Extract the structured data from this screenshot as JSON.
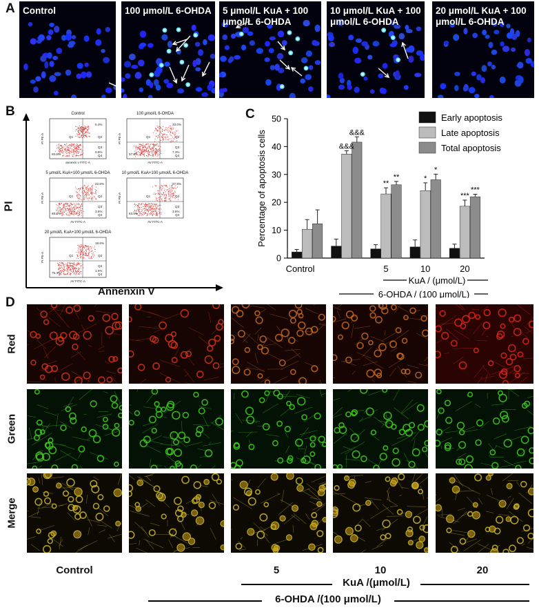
{
  "panels": {
    "a": "A",
    "b": "B",
    "c": "C",
    "d": "D"
  },
  "panel_a": {
    "images": [
      {
        "label": "Control"
      },
      {
        "label": "100 μmol/L  6-OHDA"
      },
      {
        "label": "5 μmol/L KuA + 100 μmol/L 6-OHDA"
      },
      {
        "label": "10 μmol/L KuA + 100 μmol/L 6-OHDA"
      },
      {
        "label": "20 μmol/L KuA + 100 μmol/L 6-OHDA"
      }
    ]
  },
  "panel_b": {
    "y_axis": "PI",
    "x_axis": "Annenxin V",
    "plots": [
      {
        "title": "Control",
        "ylabel": "PI PE-A",
        "xlabel": "annexin v FITC-A",
        "q1": "Q1",
        "q2": "Q2",
        "q3": "Q3",
        "q4": "Q4",
        "v_q2": "5.4%",
        "v_q3": "93.0%",
        "v_q4": "0.5%"
      },
      {
        "title": "100 μmol/L  6-OHDA",
        "ylabel": "PI PE-A",
        "xlabel": "AV FITC-A",
        "q1": "Q1",
        "q2": "Q2",
        "q3": "Q3",
        "q4": "Q4",
        "v_q2": "33.0%",
        "v_q3": "57.8%",
        "v_q4": "7.3%"
      },
      {
        "title": "5 μmol/L KuA+100 μmol/L 6-OHDA",
        "ylabel": "PI PE-A",
        "xlabel": "AV FITC-A",
        "q1": "Q1",
        "q2": "Q2",
        "q3": "Q3",
        "q4": "Q4",
        "v_q2": "22.8%",
        "v_q3": "69.8%",
        "v_q4": "3.5%"
      },
      {
        "title": "10 μmol/L KuA+100 μmol/L 6-OHDA",
        "ylabel": "PI PE-A",
        "xlabel": "AV FITC-A",
        "q1": "Q1",
        "q2": "Q2",
        "q3": "Q3",
        "q4": "Q4",
        "v_q2": "27.8%",
        "v_q3": "63.5%",
        "v_q4": "3.5%"
      },
      {
        "title": "20 μmol/L KuA+100 μmol/L 6-OHDA",
        "ylabel": "PI PE-A",
        "xlabel": "AV FITC-A",
        "q1": "Q1",
        "q2": "Q2",
        "q3": "Q3",
        "q4": "Q4",
        "v_q2": "18.6%",
        "v_q3": "75.4%",
        "v_q4": "1.5%"
      }
    ]
  },
  "chart_data": {
    "type": "bar",
    "title": "",
    "xlabel": "",
    "ylabel": "Percentage of apoptosis cells",
    "ylim": [
      0,
      50
    ],
    "yticks": [
      0,
      10,
      20,
      30,
      40,
      50
    ],
    "categories": [
      "Control",
      "",
      "5",
      "10",
      "20"
    ],
    "group_labels": {
      "kua": "KuA / (μmol/L)",
      "ohda": "6-OHDA / (100 μmol/L)"
    },
    "legend_position": "top-right",
    "series": [
      {
        "name": "Early apoptosis",
        "color": "#111111",
        "values": [
          2.2,
          4.3,
          3.3,
          4.0,
          3.5
        ],
        "errors": [
          0.9,
          2.5,
          1.5,
          2.5,
          1.5
        ]
      },
      {
        "name": "Late apoptosis",
        "color": "#bcbcbc",
        "values": [
          10.3,
          37.3,
          23.0,
          24.2,
          18.6
        ],
        "errors": [
          3.5,
          1.2,
          2.2,
          2.8,
          2.2
        ]
      },
      {
        "name": "Total apoptosis",
        "color": "#8c8c8c",
        "values": [
          12.3,
          41.6,
          26.3,
          28.1,
          22.0
        ],
        "errors": [
          5.0,
          1.9,
          1.2,
          2.0,
          0.9
        ]
      }
    ],
    "annotations": [
      {
        "category": 1,
        "series": 1,
        "text": "&&&"
      },
      {
        "category": 1,
        "series": 2,
        "text": "&&&"
      },
      {
        "category": 2,
        "series": 1,
        "text": "**"
      },
      {
        "category": 2,
        "series": 2,
        "text": "**"
      },
      {
        "category": 3,
        "series": 1,
        "text": "*"
      },
      {
        "category": 3,
        "series": 2,
        "text": "*"
      },
      {
        "category": 4,
        "series": 1,
        "text": "***"
      },
      {
        "category": 4,
        "series": 2,
        "text": "***"
      }
    ]
  },
  "panel_d": {
    "rows": [
      "Red",
      "Green",
      "Merge"
    ],
    "columns": [
      "Control",
      "",
      "5",
      "10",
      "20"
    ],
    "kua_label": "KuA /(μmol/L)",
    "ohda_label": "6-OHDA /(100 μmol/L)",
    "colors": {
      "red": "#d8321b",
      "green": "#3fcf1e",
      "merge": "#cdb62a"
    }
  }
}
